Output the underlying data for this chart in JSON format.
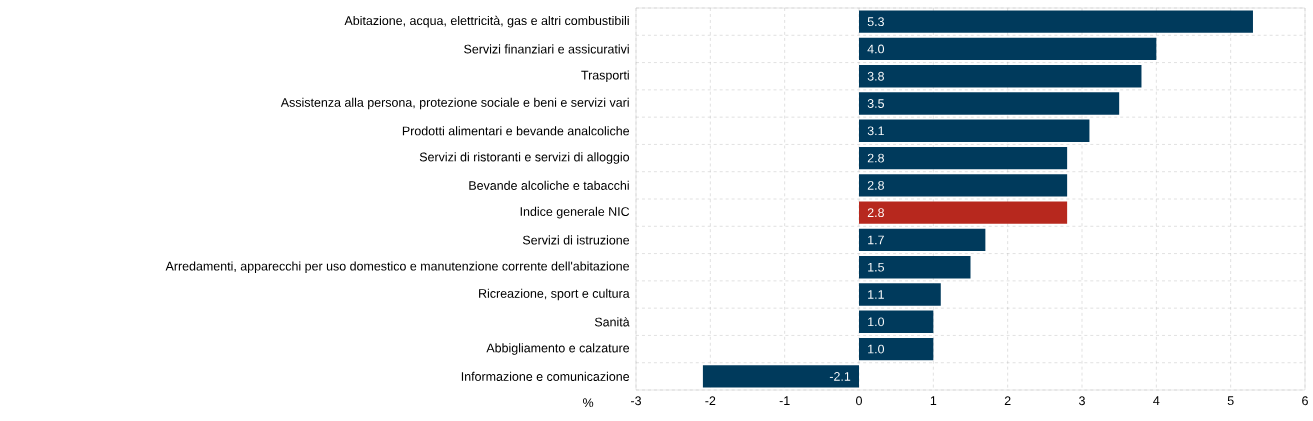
{
  "chart_data": {
    "type": "bar",
    "orientation": "horizontal",
    "xlabel": "%",
    "categories": [
      "Abitazione, acqua, elettricità, gas e altri combustibili",
      "Servizi finanziari e assicurativi",
      "Trasporti",
      "Assistenza alla persona, protezione sociale e beni e servizi vari",
      "Prodotti alimentari e bevande analcoliche",
      "Servizi di ristoranti e servizi di alloggio",
      "Bevande alcoliche e tabacchi",
      "Indice generale NIC",
      "Servizi di istruzione",
      "Arredamenti, apparecchi per uso domestico e manutenzione corrente dell'abitazione",
      "Ricreazione, sport e cultura",
      "Sanità",
      "Abbigliamento e calzature",
      "Informazione e comunicazione"
    ],
    "values": [
      5.3,
      4.0,
      3.8,
      3.5,
      3.1,
      2.8,
      2.8,
      2.8,
      1.7,
      1.5,
      1.1,
      1.0,
      1.0,
      -2.1
    ],
    "value_labels": [
      "5.3",
      "4.0",
      "3.8",
      "3.5",
      "3.1",
      "2.8",
      "2.8",
      "2.8",
      "1.7",
      "1.5",
      "1.1",
      "1.0",
      "1.0",
      "-2.1"
    ],
    "colors": [
      "#003a5c",
      "#003a5c",
      "#003a5c",
      "#003a5c",
      "#003a5c",
      "#003a5c",
      "#003a5c",
      "#b7281e",
      "#003a5c",
      "#003a5c",
      "#003a5c",
      "#003a5c",
      "#003a5c",
      "#003a5c"
    ],
    "xlim": [
      -3,
      6
    ],
    "xticks": [
      -3,
      -2,
      -1,
      0,
      1,
      2,
      3,
      4,
      5,
      6
    ],
    "grid": true
  }
}
